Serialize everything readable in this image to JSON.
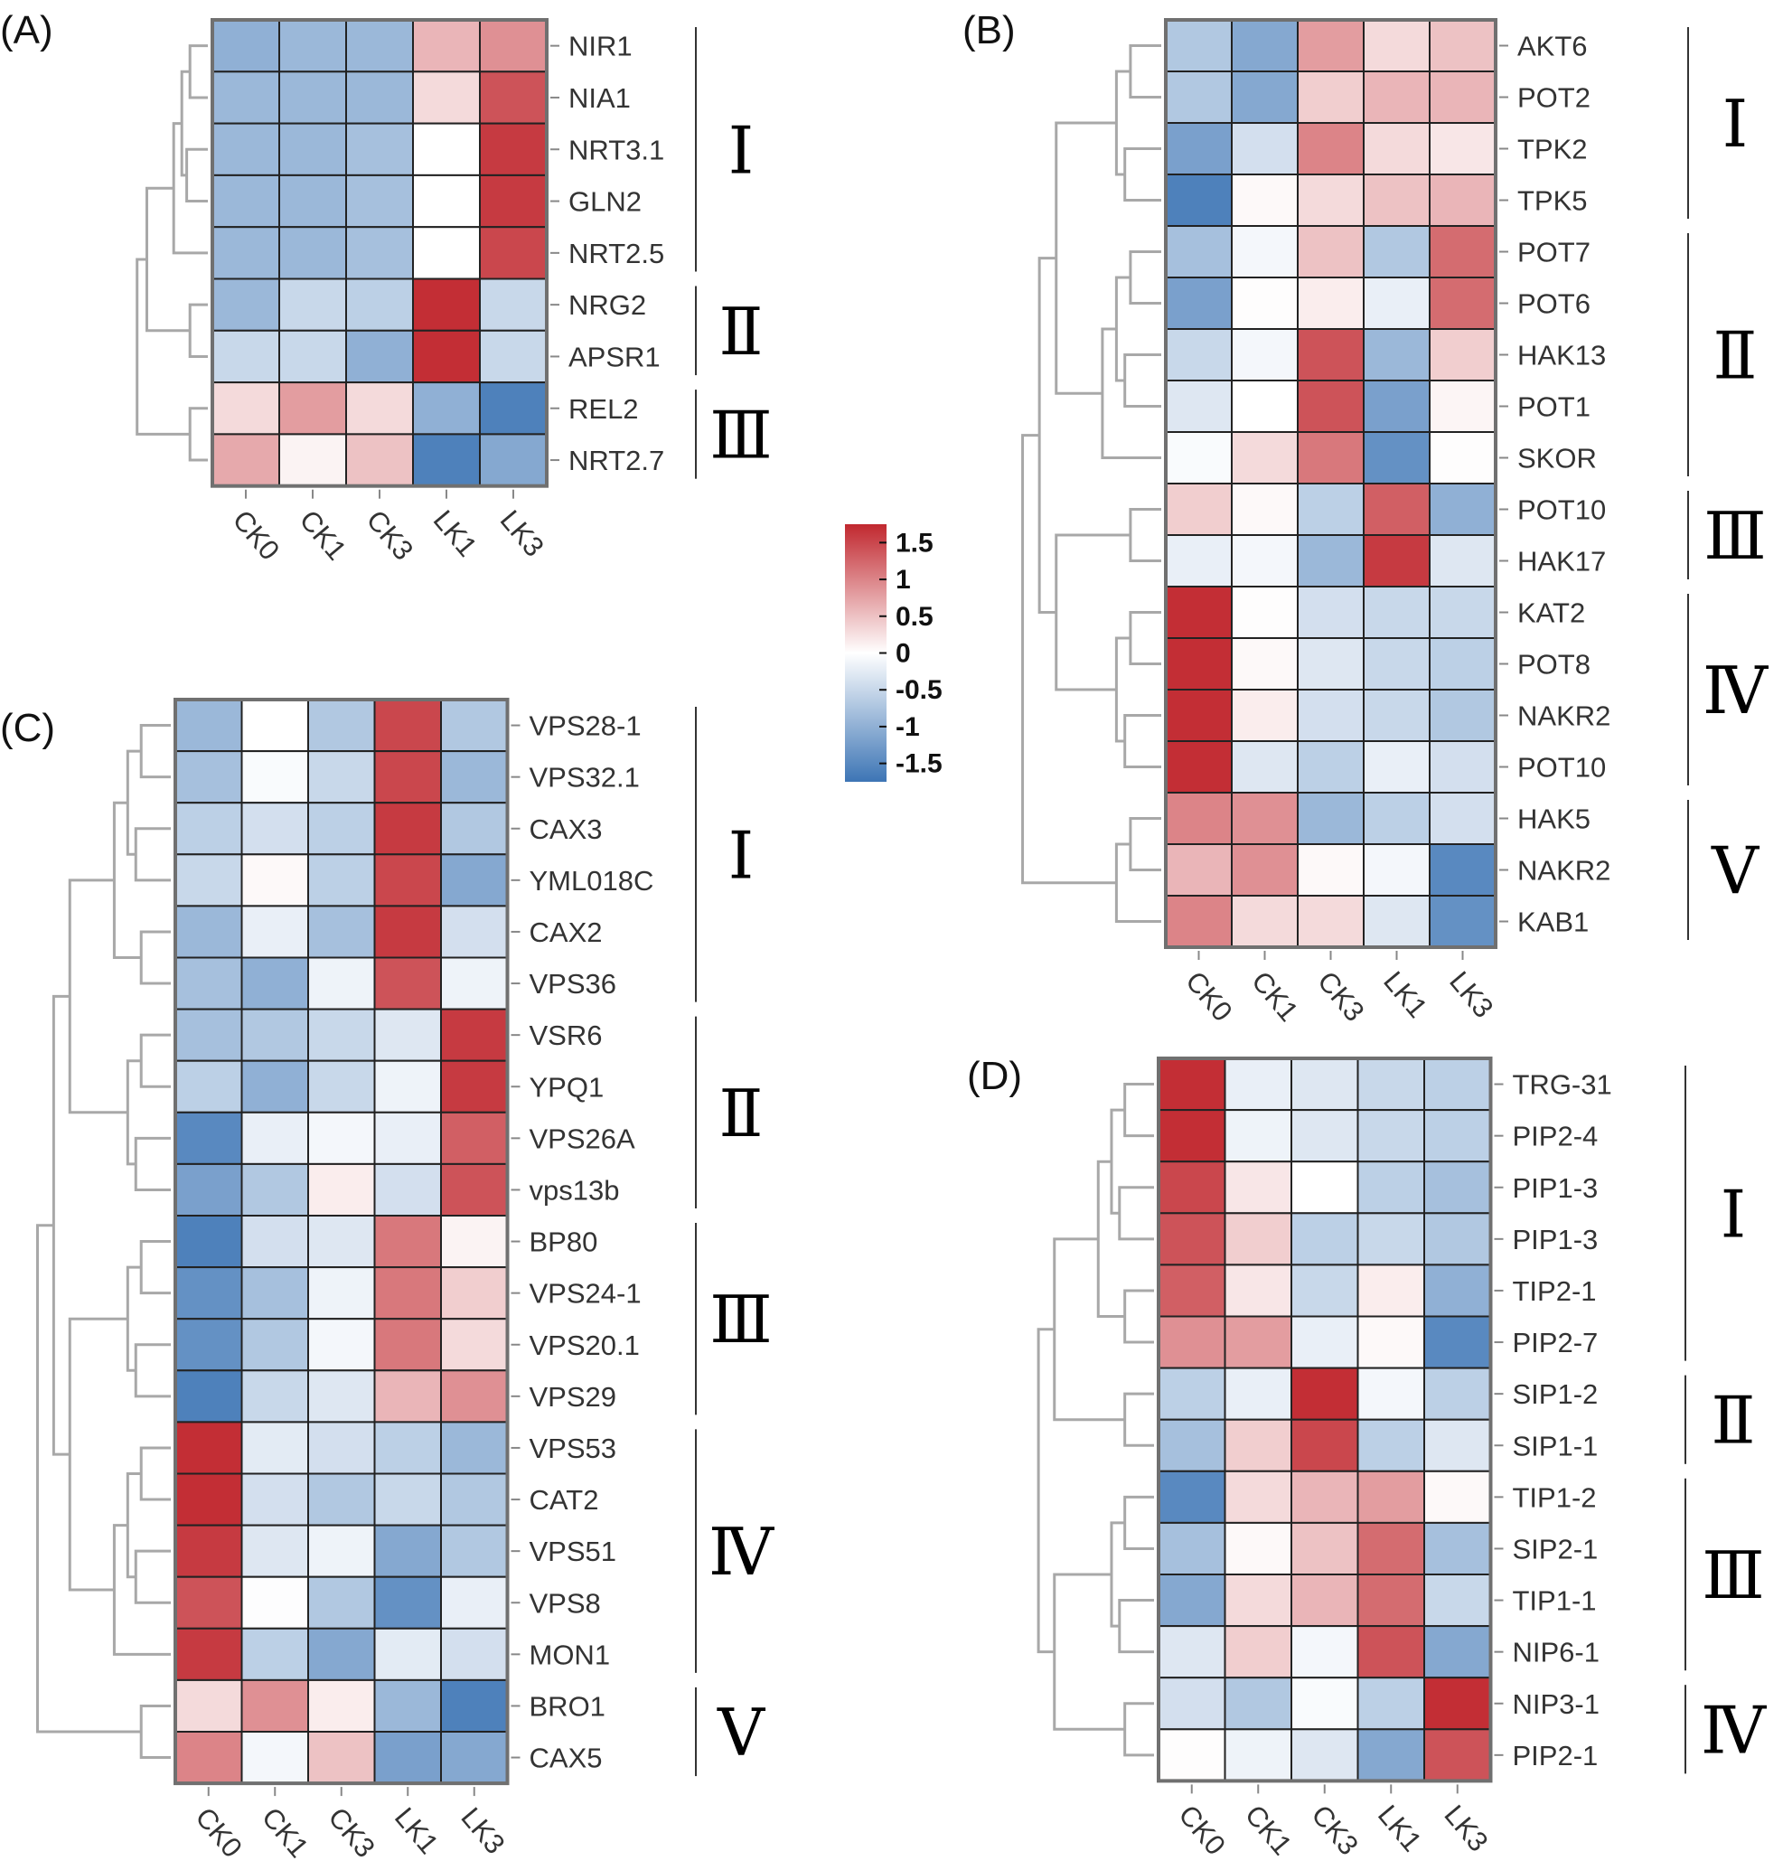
{
  "colors": {
    "low": "#3d75b5",
    "mid": "#ffffff",
    "high": "#c1282f",
    "dendrogram": "#a8a8a8",
    "cell_border": "#222222",
    "frame": "#707070"
  },
  "legend": {
    "ticks": [
      "1.5",
      "1",
      "0.5",
      "0",
      "-0.5",
      "-1",
      "-1.5"
    ],
    "tick_values": [
      1.5,
      1,
      0.5,
      0,
      -0.5,
      -1,
      -1.5
    ],
    "range": [
      -1.75,
      1.75
    ]
  },
  "chart_data": [
    {
      "type": "heatmap",
      "panel": "(A)",
      "columns": [
        "CK0",
        "CK1",
        "CK3",
        "LK1",
        "LK3"
      ],
      "rows": [
        "NIR1",
        "NIA1",
        "NRT3.1",
        "GLN2",
        "NRT2.5",
        "NRG2",
        "APSR1",
        "REL2",
        "NRT2.7"
      ],
      "values": [
        [
          -1.0,
          -0.9,
          -0.9,
          0.6,
          0.9
        ],
        [
          -0.9,
          -0.9,
          -0.9,
          0.3,
          1.4
        ],
        [
          -0.9,
          -0.9,
          -0.8,
          0.0,
          1.6
        ],
        [
          -0.9,
          -0.9,
          -0.8,
          0.0,
          1.6
        ],
        [
          -0.9,
          -0.9,
          -0.8,
          0.0,
          1.5
        ],
        [
          -0.9,
          -0.5,
          -0.6,
          1.7,
          -0.5
        ],
        [
          -0.5,
          -0.5,
          -1.0,
          1.7,
          -0.5
        ],
        [
          0.3,
          0.8,
          0.3,
          -1.0,
          -1.6
        ],
        [
          0.7,
          0.1,
          0.5,
          -1.6,
          -1.1
        ]
      ],
      "clusters": [
        {
          "label": "Ⅰ",
          "rows": [
            0,
            4
          ]
        },
        {
          "label": "Ⅱ",
          "rows": [
            5,
            6
          ]
        },
        {
          "label": "Ⅲ",
          "rows": [
            7,
            8
          ]
        }
      ]
    },
    {
      "type": "heatmap",
      "panel": "(B)",
      "columns": [
        "CK0",
        "CK1",
        "CK3",
        "LK1",
        "LK3"
      ],
      "rows": [
        "AKT6",
        "POT2",
        "TPK2",
        "TPK5",
        "POT7",
        "POT6",
        "HAK13",
        "POT1",
        "SKOR",
        "POT10",
        "HAK17",
        "KAT2",
        "POT8",
        "NAKR2",
        "POT10",
        "HAK5",
        "NAKR2",
        "KAB1"
      ],
      "values": [
        [
          -0.7,
          -1.1,
          0.8,
          0.3,
          0.5
        ],
        [
          -0.7,
          -1.1,
          0.4,
          0.6,
          0.6
        ],
        [
          -1.2,
          -0.4,
          1.0,
          0.3,
          0.2
        ],
        [
          -1.6,
          0.05,
          0.3,
          0.5,
          0.6
        ],
        [
          -0.8,
          -0.1,
          0.5,
          -0.7,
          1.2
        ],
        [
          -1.2,
          0.02,
          0.15,
          -0.2,
          1.2
        ],
        [
          -0.5,
          -0.1,
          1.4,
          -0.9,
          0.4
        ],
        [
          -0.3,
          0.0,
          1.4,
          -1.2,
          0.08
        ],
        [
          -0.05,
          0.3,
          1.1,
          -1.4,
          0.02
        ],
        [
          0.4,
          0.05,
          -0.6,
          1.3,
          -1.0
        ],
        [
          -0.2,
          -0.1,
          -0.9,
          1.6,
          -0.3
        ],
        [
          1.7,
          0.02,
          -0.4,
          -0.5,
          -0.5
        ],
        [
          1.7,
          0.05,
          -0.3,
          -0.5,
          -0.6
        ],
        [
          1.7,
          0.15,
          -0.4,
          -0.5,
          -0.7
        ],
        [
          1.7,
          -0.3,
          -0.6,
          -0.2,
          -0.4
        ],
        [
          1.0,
          0.9,
          -0.9,
          -0.6,
          -0.4
        ],
        [
          0.6,
          0.9,
          0.05,
          -0.1,
          -1.5
        ],
        [
          1.0,
          0.3,
          0.3,
          -0.3,
          -1.4
        ]
      ],
      "clusters": [
        {
          "label": "Ⅰ",
          "rows": [
            0,
            3
          ]
        },
        {
          "label": "Ⅱ",
          "rows": [
            4,
            8
          ]
        },
        {
          "label": "Ⅲ",
          "rows": [
            9,
            10
          ]
        },
        {
          "label": "Ⅳ",
          "rows": [
            11,
            14
          ]
        },
        {
          "label": "Ⅴ",
          "rows": [
            15,
            17
          ]
        }
      ]
    },
    {
      "type": "heatmap",
      "panel": "(C)",
      "columns": [
        "CK0",
        "CK1",
        "CK3",
        "LK1",
        "LK3"
      ],
      "rows": [
        "VPS28-1",
        "VPS32.1",
        "CAX3",
        "YML018C",
        "CAX2",
        "VPS36",
        "VSR6",
        "YPQ1",
        "VPS26A",
        "vps13b",
        "BP80",
        "VPS24-1",
        "VPS20.1",
        "VPS29",
        "VPS53",
        "CAT2",
        "VPS51",
        "VPS8",
        "MON1",
        "BRO1",
        "CAX5"
      ],
      "values": [
        [
          -0.9,
          0.0,
          -0.7,
          1.5,
          -0.7
        ],
        [
          -0.8,
          -0.05,
          -0.5,
          1.5,
          -0.9
        ],
        [
          -0.6,
          -0.4,
          -0.6,
          1.6,
          -0.7
        ],
        [
          -0.5,
          0.05,
          -0.6,
          1.5,
          -1.1
        ],
        [
          -0.9,
          -0.2,
          -0.8,
          1.6,
          -0.4
        ],
        [
          -0.8,
          -1.0,
          -0.15,
          1.4,
          -0.15
        ],
        [
          -0.8,
          -0.7,
          -0.5,
          -0.3,
          1.6
        ],
        [
          -0.6,
          -1.0,
          -0.5,
          -0.15,
          1.6
        ],
        [
          -1.5,
          -0.2,
          -0.1,
          -0.2,
          1.3
        ],
        [
          -1.2,
          -0.7,
          0.15,
          -0.4,
          1.4
        ],
        [
          -1.6,
          -0.4,
          -0.3,
          1.1,
          0.1
        ],
        [
          -1.4,
          -0.8,
          -0.15,
          1.1,
          0.4
        ],
        [
          -1.4,
          -0.7,
          -0.1,
          1.1,
          0.3
        ],
        [
          -1.6,
          -0.5,
          -0.3,
          0.6,
          0.9
        ],
        [
          1.7,
          -0.25,
          -0.4,
          -0.6,
          -0.9
        ],
        [
          1.7,
          -0.4,
          -0.7,
          -0.5,
          -0.7
        ],
        [
          1.6,
          -0.3,
          -0.15,
          -1.1,
          -0.7
        ],
        [
          1.4,
          -0.02,
          -0.7,
          -1.4,
          -0.2
        ],
        [
          1.6,
          -0.6,
          -1.1,
          -0.25,
          -0.4
        ],
        [
          0.3,
          0.9,
          0.15,
          -0.9,
          -1.6
        ],
        [
          1.0,
          -0.1,
          0.5,
          -1.2,
          -1.1
        ]
      ],
      "clusters": [
        {
          "label": "Ⅰ",
          "rows": [
            0,
            5
          ]
        },
        {
          "label": "Ⅱ",
          "rows": [
            6,
            9
          ]
        },
        {
          "label": "Ⅲ",
          "rows": [
            10,
            13
          ]
        },
        {
          "label": "Ⅳ",
          "rows": [
            14,
            18
          ]
        },
        {
          "label": "Ⅴ",
          "rows": [
            19,
            20
          ]
        }
      ]
    },
    {
      "type": "heatmap",
      "panel": "(D)",
      "columns": [
        "CK0",
        "CK1",
        "CK3",
        "LK1",
        "LK3"
      ],
      "rows": [
        "TRG-31",
        "PIP2-4",
        "PIP1-3",
        "PIP1-3",
        "TIP2-1",
        "PIP2-7",
        "SIP1-2",
        "SIP1-1",
        "TIP1-2",
        "SIP2-1",
        "TIP1-1",
        "NIP6-1",
        "NIP3-1",
        "PIP2-1"
      ],
      "values": [
        [
          1.7,
          -0.2,
          -0.3,
          -0.5,
          -0.6
        ],
        [
          1.7,
          -0.15,
          -0.3,
          -0.5,
          -0.6
        ],
        [
          1.5,
          0.2,
          0.0,
          -0.6,
          -0.8
        ],
        [
          1.4,
          0.4,
          -0.6,
          -0.5,
          -0.7
        ],
        [
          1.3,
          0.2,
          -0.5,
          0.15,
          -1.0
        ],
        [
          0.9,
          0.8,
          -0.2,
          0.05,
          -1.5
        ],
        [
          -0.6,
          -0.2,
          1.7,
          -0.1,
          -0.6
        ],
        [
          -0.8,
          0.4,
          1.5,
          -0.6,
          -0.3
        ],
        [
          -1.5,
          0.3,
          0.6,
          0.8,
          0.05
        ],
        [
          -0.8,
          0.05,
          0.5,
          1.2,
          -0.8
        ],
        [
          -1.1,
          0.3,
          0.6,
          1.2,
          -0.5
        ],
        [
          -0.3,
          0.4,
          -0.1,
          1.4,
          -1.1
        ],
        [
          -0.4,
          -0.7,
          -0.05,
          -0.6,
          1.7
        ],
        [
          0.02,
          -0.15,
          -0.3,
          -1.1,
          1.4
        ]
      ],
      "clusters": [
        {
          "label": "Ⅰ",
          "rows": [
            0,
            5
          ]
        },
        {
          "label": "Ⅱ",
          "rows": [
            6,
            7
          ]
        },
        {
          "label": "Ⅲ",
          "rows": [
            8,
            11
          ]
        },
        {
          "label": "Ⅳ",
          "rows": [
            12,
            13
          ]
        }
      ]
    }
  ]
}
